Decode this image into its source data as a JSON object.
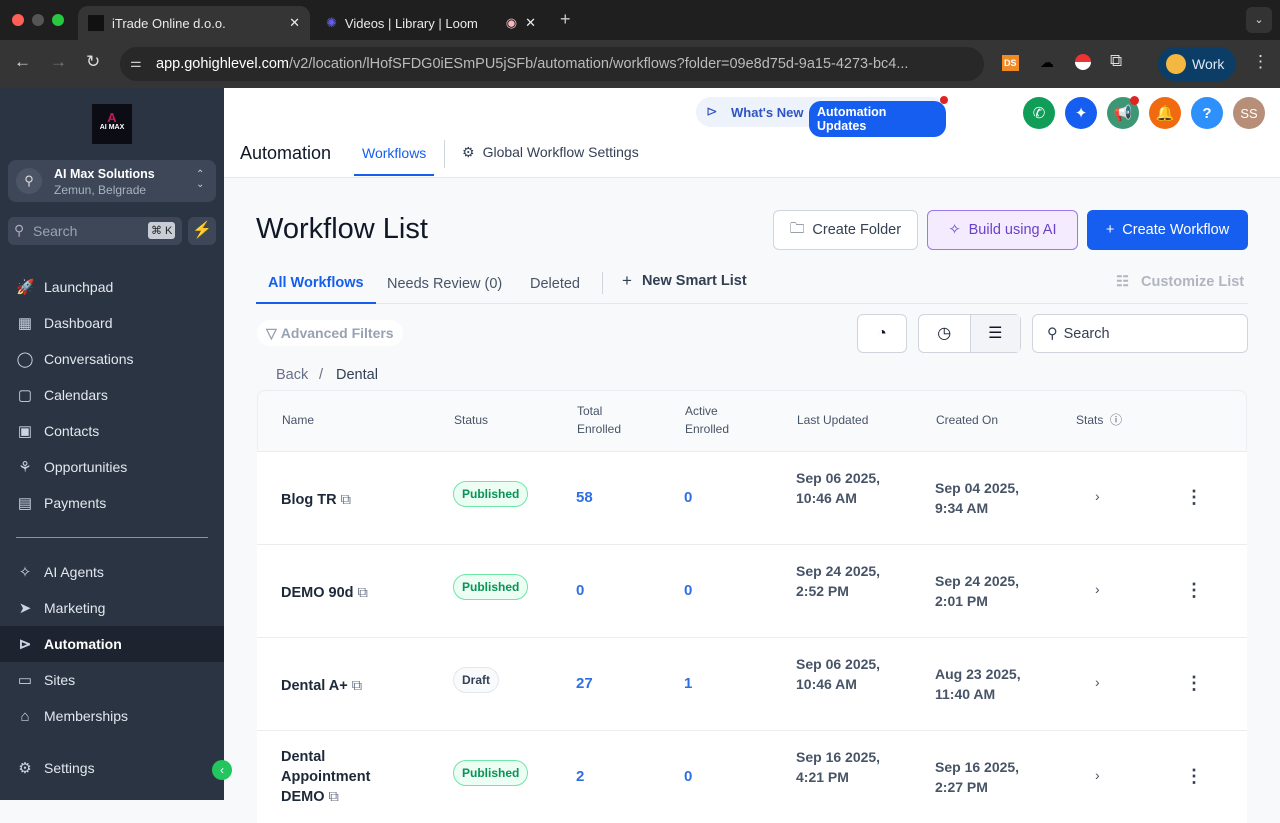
{
  "browser": {
    "tabs": [
      {
        "label": "iTrade Online d.o.o.",
        "active": true
      },
      {
        "label": "Videos | Library | Loom",
        "active": false
      }
    ],
    "url_host": "app.gohighlevel.com",
    "url_path": "/v2/location/lHofSFDG0iESmPU5jSFb/automation/workflows?folder=09e8d75d-9a15-4273-bc4...",
    "profile": "Work",
    "ext_ds": "DS"
  },
  "sidebar": {
    "logo_text": "AI MAX",
    "account": {
      "name": "AI Max Solutions",
      "location": "Zemun, Belgrade"
    },
    "search_placeholder": "Search",
    "shortcut": "⌘ K",
    "items": [
      {
        "label": "Launchpad",
        "icon": "rocket-icon"
      },
      {
        "label": "Dashboard",
        "icon": "grid-icon"
      },
      {
        "label": "Conversations",
        "icon": "chat-icon"
      },
      {
        "label": "Calendars",
        "icon": "calendar-icon"
      },
      {
        "label": "Contacts",
        "icon": "contacts-icon"
      },
      {
        "label": "Opportunities",
        "icon": "filter-icon"
      },
      {
        "label": "Payments",
        "icon": "payments-icon"
      }
    ],
    "items2": [
      {
        "label": "AI Agents",
        "icon": "sparkle-icon"
      },
      {
        "label": "Marketing",
        "icon": "send-icon"
      },
      {
        "label": "Automation",
        "icon": "automation-icon",
        "active": true
      },
      {
        "label": "Sites",
        "icon": "sites-icon"
      },
      {
        "label": "Memberships",
        "icon": "memberships-icon"
      }
    ],
    "settings": "Settings"
  },
  "header": {
    "whats_new": "What's New",
    "updates": "Automation Updates",
    "avatar": "SS",
    "help": "?",
    "title": "Automation",
    "tabs": [
      "Workflows",
      "Global Workflow Settings"
    ]
  },
  "main": {
    "title": "Workflow List",
    "buttons": {
      "create_folder": "Create Folder",
      "build_ai": "Build using AI",
      "create_workflow": "Create Workflow"
    },
    "subtabs": [
      "All Workflows",
      "Needs Review (0)",
      "Deleted"
    ],
    "new_smart_list": "New Smart List",
    "customize": "Customize List",
    "advanced_filters": "Advanced Filters",
    "search_placeholder": "Search",
    "breadcrumb": {
      "back": "Back",
      "current": "Dental"
    },
    "columns": [
      "Name",
      "Status",
      "Total\nEnrolled",
      "Active\nEnrolled",
      "Last Updated",
      "Created On",
      "Stats"
    ],
    "rows": [
      {
        "name": "Blog TR",
        "status": "Published",
        "total": "58",
        "active": "0",
        "updated": "Sep 06 2025, 10:46 AM",
        "created": "Sep 04 2025, 9:34 AM"
      },
      {
        "name": "DEMO 90d",
        "status": "Published",
        "total": "0",
        "active": "0",
        "updated": "Sep 24 2025, 2:52 PM",
        "created": "Sep 24 2025, 2:01 PM"
      },
      {
        "name": "Dental A+",
        "status": "Draft",
        "total": "27",
        "active": "1",
        "updated": "Sep 06 2025, 10:46 AM",
        "created": "Aug 23 2025, 11:40 AM"
      },
      {
        "name": "Dental Appointment DEMO",
        "status": "Published",
        "total": "2",
        "active": "0",
        "updated": "Sep 16 2025, 4:21 PM",
        "created": "Sep 16 2025, 2:27 PM"
      }
    ]
  },
  "colors": {
    "accent": "#155eef",
    "sidebar": "#2b3442",
    "published": "#079455"
  }
}
